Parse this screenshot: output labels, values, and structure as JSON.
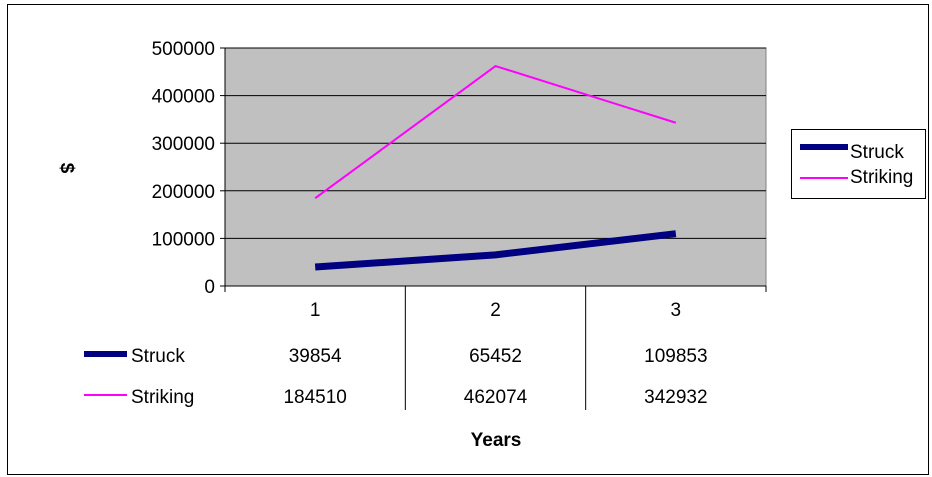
{
  "chart_data": {
    "type": "line",
    "title": "",
    "xlabel": "Years",
    "ylabel": "$",
    "categories": [
      "1",
      "2",
      "3"
    ],
    "ylim": [
      0,
      500000
    ],
    "yticks": [
      "0",
      "100000",
      "200000",
      "300000",
      "400000",
      "500000"
    ],
    "grid": true,
    "legend_position": "right",
    "data_table": true,
    "series": [
      {
        "name": "Struck",
        "values": [
          39854,
          65452,
          109853
        ],
        "color": "#000080"
      },
      {
        "name": "Striking",
        "values": [
          184510,
          462074,
          342932
        ],
        "color": "#ff00ff"
      }
    ],
    "table_cells": [
      [
        "39854",
        "65452",
        "109853"
      ],
      [
        "184510",
        "462074",
        "342932"
      ]
    ],
    "plot_background": "#c0c0c0"
  }
}
